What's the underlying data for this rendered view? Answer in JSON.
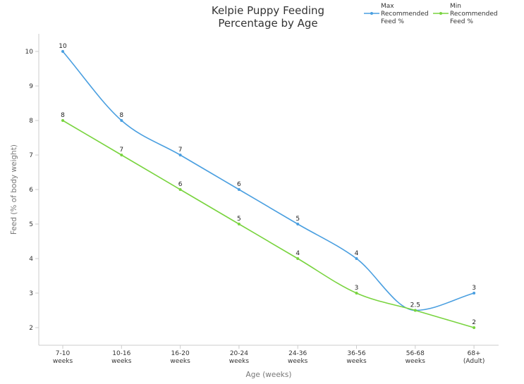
{
  "chart_data": {
    "type": "line",
    "title_lines": [
      "Kelpie Puppy Feeding",
      "Percentage by Age"
    ],
    "xlabel": "Age (weeks)",
    "ylabel": "Feed (% of body weight)",
    "categories": [
      [
        "7-10",
        "weeks"
      ],
      [
        "10-16",
        "weeks"
      ],
      [
        "16-20",
        "weeks"
      ],
      [
        "20-24",
        "weeks"
      ],
      [
        "24-36",
        "weeks"
      ],
      [
        "36-56",
        "weeks"
      ],
      [
        "56-68",
        "weeks"
      ],
      [
        "68+",
        "(Adult)"
      ]
    ],
    "ylim": [
      1.5,
      10.5
    ],
    "yticks": [
      2,
      3,
      4,
      5,
      6,
      7,
      8,
      9,
      10
    ],
    "grid": false,
    "legend_position": "top-right",
    "series": [
      {
        "name_lines": [
          "Max",
          "Recommended",
          "Feed %"
        ],
        "color": "#4a9fe0",
        "values": [
          10,
          8,
          7,
          6,
          5,
          4,
          2.5,
          3
        ],
        "labels": [
          "10",
          "8",
          "7",
          "6",
          "5",
          "4",
          "2.5",
          "3"
        ]
      },
      {
        "name_lines": [
          "Min",
          "Recommended",
          "Feed %"
        ],
        "color": "#79d43f",
        "values": [
          8,
          7,
          6,
          5,
          4,
          3,
          2.5,
          2
        ],
        "labels": [
          "8",
          "7",
          "6",
          "5",
          "4",
          "3",
          "",
          "2"
        ]
      }
    ]
  }
}
